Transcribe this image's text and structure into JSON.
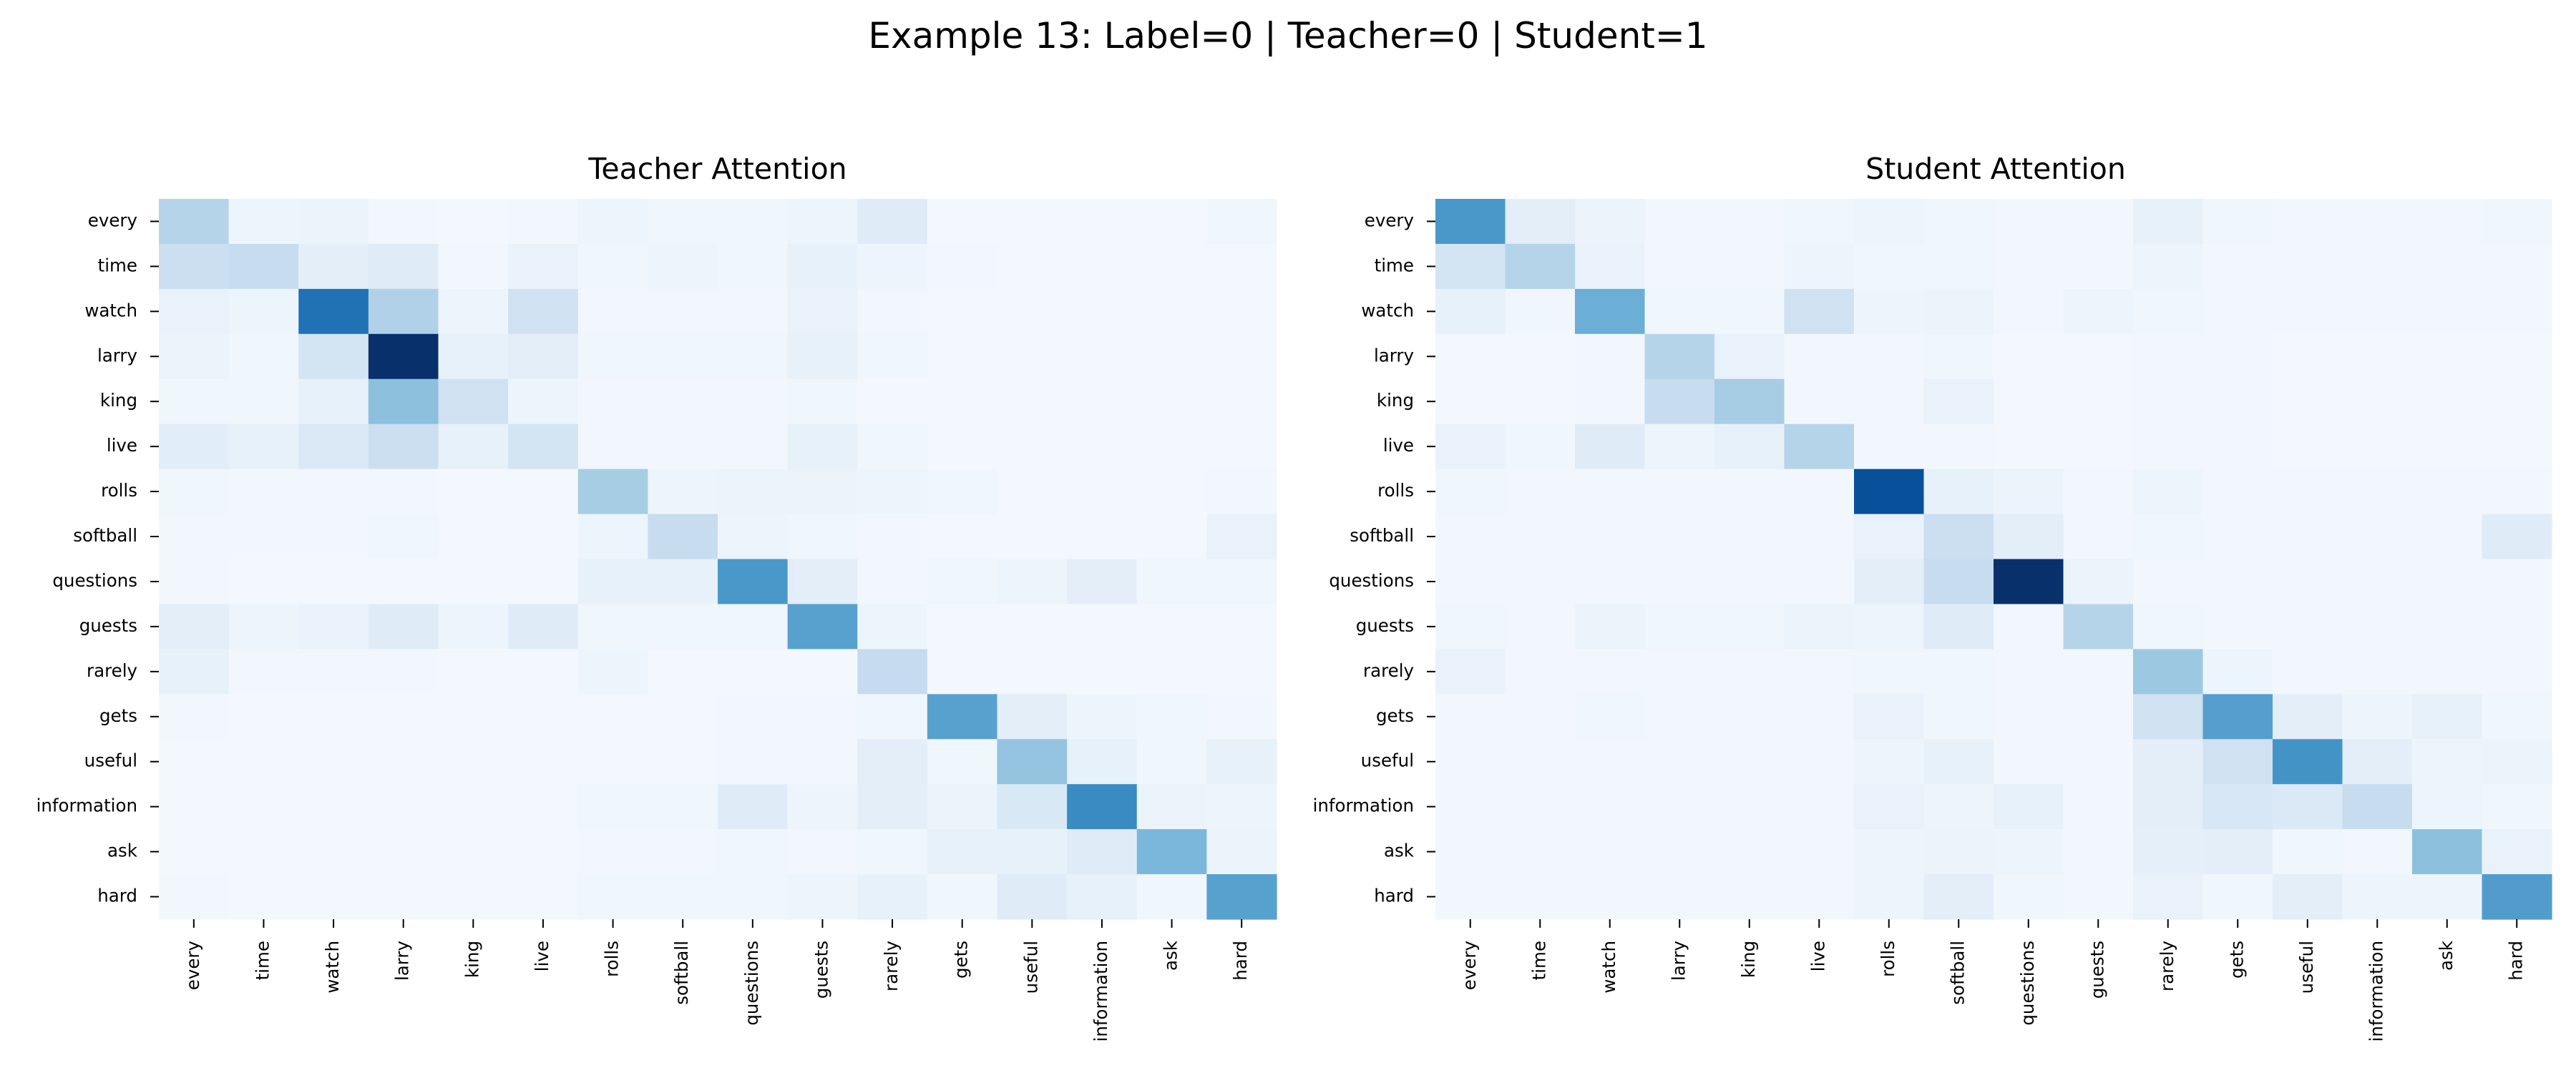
{
  "figure": {
    "suptitle": "Example 13: Label=0 | Teacher=0 | Student=1"
  },
  "chart_data": [
    {
      "type": "heatmap",
      "title": "Teacher Attention",
      "xlabel": "",
      "ylabel": "",
      "colormap": "Blues",
      "value_range": [
        0,
        1
      ],
      "labels": [
        "every",
        "time",
        "watch",
        "larry",
        "king",
        "live",
        "rolls",
        "softball",
        "questions",
        "guests",
        "rarely",
        "gets",
        "useful",
        "information",
        "ask",
        "hard"
      ],
      "values": [
        [
          0.3,
          0.05,
          0.06,
          0.03,
          0.02,
          0.03,
          0.05,
          0.04,
          0.04,
          0.05,
          0.12,
          0.02,
          0.02,
          0.02,
          0.02,
          0.04
        ],
        [
          0.22,
          0.24,
          0.1,
          0.12,
          0.03,
          0.07,
          0.04,
          0.05,
          0.04,
          0.08,
          0.05,
          0.03,
          0.02,
          0.02,
          0.02,
          0.02
        ],
        [
          0.07,
          0.05,
          0.75,
          0.32,
          0.05,
          0.2,
          0.03,
          0.03,
          0.03,
          0.07,
          0.03,
          0.02,
          0.02,
          0.02,
          0.02,
          0.02
        ],
        [
          0.06,
          0.04,
          0.18,
          1.0,
          0.08,
          0.1,
          0.04,
          0.04,
          0.04,
          0.08,
          0.04,
          0.02,
          0.02,
          0.02,
          0.02,
          0.02
        ],
        [
          0.04,
          0.04,
          0.08,
          0.42,
          0.2,
          0.05,
          0.03,
          0.03,
          0.03,
          0.04,
          0.02,
          0.02,
          0.02,
          0.02,
          0.02,
          0.02
        ],
        [
          0.11,
          0.08,
          0.14,
          0.22,
          0.08,
          0.18,
          0.03,
          0.03,
          0.03,
          0.08,
          0.04,
          0.02,
          0.02,
          0.02,
          0.02,
          0.02
        ],
        [
          0.04,
          0.03,
          0.03,
          0.03,
          0.02,
          0.02,
          0.35,
          0.05,
          0.06,
          0.06,
          0.05,
          0.04,
          0.02,
          0.02,
          0.02,
          0.03
        ],
        [
          0.03,
          0.03,
          0.03,
          0.04,
          0.02,
          0.02,
          0.05,
          0.24,
          0.05,
          0.04,
          0.03,
          0.02,
          0.02,
          0.02,
          0.02,
          0.07
        ],
        [
          0.03,
          0.02,
          0.02,
          0.02,
          0.02,
          0.02,
          0.08,
          0.08,
          0.6,
          0.1,
          0.03,
          0.04,
          0.05,
          0.1,
          0.04,
          0.04
        ],
        [
          0.1,
          0.05,
          0.07,
          0.12,
          0.05,
          0.12,
          0.04,
          0.04,
          0.04,
          0.56,
          0.05,
          0.02,
          0.02,
          0.02,
          0.02,
          0.02
        ],
        [
          0.08,
          0.03,
          0.03,
          0.03,
          0.02,
          0.02,
          0.05,
          0.02,
          0.02,
          0.02,
          0.25,
          0.02,
          0.02,
          0.02,
          0.02,
          0.02
        ],
        [
          0.03,
          0.02,
          0.02,
          0.02,
          0.02,
          0.02,
          0.02,
          0.02,
          0.03,
          0.03,
          0.04,
          0.56,
          0.1,
          0.05,
          0.04,
          0.03
        ],
        [
          0.02,
          0.02,
          0.02,
          0.02,
          0.02,
          0.02,
          0.02,
          0.02,
          0.03,
          0.03,
          0.1,
          0.04,
          0.4,
          0.08,
          0.04,
          0.08
        ],
        [
          0.02,
          0.02,
          0.02,
          0.02,
          0.02,
          0.02,
          0.04,
          0.04,
          0.12,
          0.05,
          0.1,
          0.06,
          0.15,
          0.65,
          0.06,
          0.05
        ],
        [
          0.02,
          0.02,
          0.02,
          0.02,
          0.02,
          0.02,
          0.03,
          0.03,
          0.04,
          0.03,
          0.04,
          0.08,
          0.08,
          0.12,
          0.46,
          0.06
        ],
        [
          0.03,
          0.02,
          0.02,
          0.02,
          0.02,
          0.02,
          0.04,
          0.04,
          0.04,
          0.05,
          0.08,
          0.04,
          0.12,
          0.08,
          0.04,
          0.56
        ]
      ]
    },
    {
      "type": "heatmap",
      "title": "Student Attention",
      "xlabel": "",
      "ylabel": "",
      "colormap": "Blues",
      "value_range": [
        0,
        1
      ],
      "labels": [
        "every",
        "time",
        "watch",
        "larry",
        "king",
        "live",
        "rolls",
        "softball",
        "questions",
        "guests",
        "rarely",
        "gets",
        "useful",
        "information",
        "ask",
        "hard"
      ],
      "values": [
        [
          0.6,
          0.1,
          0.06,
          0.03,
          0.03,
          0.04,
          0.05,
          0.04,
          0.03,
          0.03,
          0.08,
          0.04,
          0.03,
          0.03,
          0.03,
          0.04
        ],
        [
          0.18,
          0.3,
          0.07,
          0.03,
          0.03,
          0.05,
          0.04,
          0.04,
          0.03,
          0.03,
          0.05,
          0.03,
          0.03,
          0.03,
          0.03,
          0.03
        ],
        [
          0.08,
          0.04,
          0.5,
          0.04,
          0.04,
          0.2,
          0.05,
          0.06,
          0.03,
          0.05,
          0.04,
          0.03,
          0.03,
          0.03,
          0.03,
          0.03
        ],
        [
          0.02,
          0.02,
          0.03,
          0.3,
          0.07,
          0.03,
          0.03,
          0.04,
          0.02,
          0.02,
          0.03,
          0.03,
          0.02,
          0.02,
          0.02,
          0.02
        ],
        [
          0.02,
          0.02,
          0.03,
          0.24,
          0.35,
          0.03,
          0.03,
          0.07,
          0.02,
          0.02,
          0.03,
          0.03,
          0.02,
          0.02,
          0.02,
          0.02
        ],
        [
          0.07,
          0.04,
          0.12,
          0.05,
          0.08,
          0.3,
          0.03,
          0.03,
          0.02,
          0.02,
          0.03,
          0.03,
          0.02,
          0.02,
          0.02,
          0.02
        ],
        [
          0.04,
          0.03,
          0.03,
          0.03,
          0.03,
          0.03,
          0.88,
          0.08,
          0.06,
          0.03,
          0.05,
          0.03,
          0.03,
          0.03,
          0.03,
          0.03
        ],
        [
          0.03,
          0.03,
          0.03,
          0.03,
          0.03,
          0.03,
          0.07,
          0.22,
          0.1,
          0.03,
          0.04,
          0.03,
          0.03,
          0.03,
          0.03,
          0.12
        ],
        [
          0.03,
          0.03,
          0.03,
          0.03,
          0.03,
          0.03,
          0.1,
          0.24,
          1.0,
          0.06,
          0.03,
          0.03,
          0.03,
          0.03,
          0.03,
          0.03
        ],
        [
          0.04,
          0.03,
          0.06,
          0.04,
          0.04,
          0.06,
          0.05,
          0.12,
          0.03,
          0.3,
          0.04,
          0.03,
          0.03,
          0.03,
          0.03,
          0.03
        ],
        [
          0.07,
          0.03,
          0.03,
          0.03,
          0.03,
          0.03,
          0.04,
          0.04,
          0.03,
          0.03,
          0.38,
          0.05,
          0.03,
          0.03,
          0.03,
          0.03
        ],
        [
          0.03,
          0.03,
          0.04,
          0.03,
          0.03,
          0.03,
          0.07,
          0.04,
          0.03,
          0.03,
          0.2,
          0.57,
          0.1,
          0.05,
          0.08,
          0.04
        ],
        [
          0.03,
          0.03,
          0.03,
          0.03,
          0.03,
          0.03,
          0.05,
          0.08,
          0.03,
          0.03,
          0.1,
          0.2,
          0.62,
          0.1,
          0.05,
          0.06
        ],
        [
          0.03,
          0.03,
          0.03,
          0.03,
          0.03,
          0.03,
          0.07,
          0.05,
          0.08,
          0.03,
          0.1,
          0.16,
          0.14,
          0.24,
          0.05,
          0.04
        ],
        [
          0.03,
          0.03,
          0.03,
          0.03,
          0.03,
          0.03,
          0.05,
          0.06,
          0.05,
          0.03,
          0.09,
          0.1,
          0.04,
          0.03,
          0.42,
          0.07
        ],
        [
          0.03,
          0.03,
          0.03,
          0.03,
          0.03,
          0.03,
          0.05,
          0.1,
          0.04,
          0.03,
          0.07,
          0.04,
          0.1,
          0.05,
          0.05,
          0.58
        ]
      ]
    }
  ]
}
